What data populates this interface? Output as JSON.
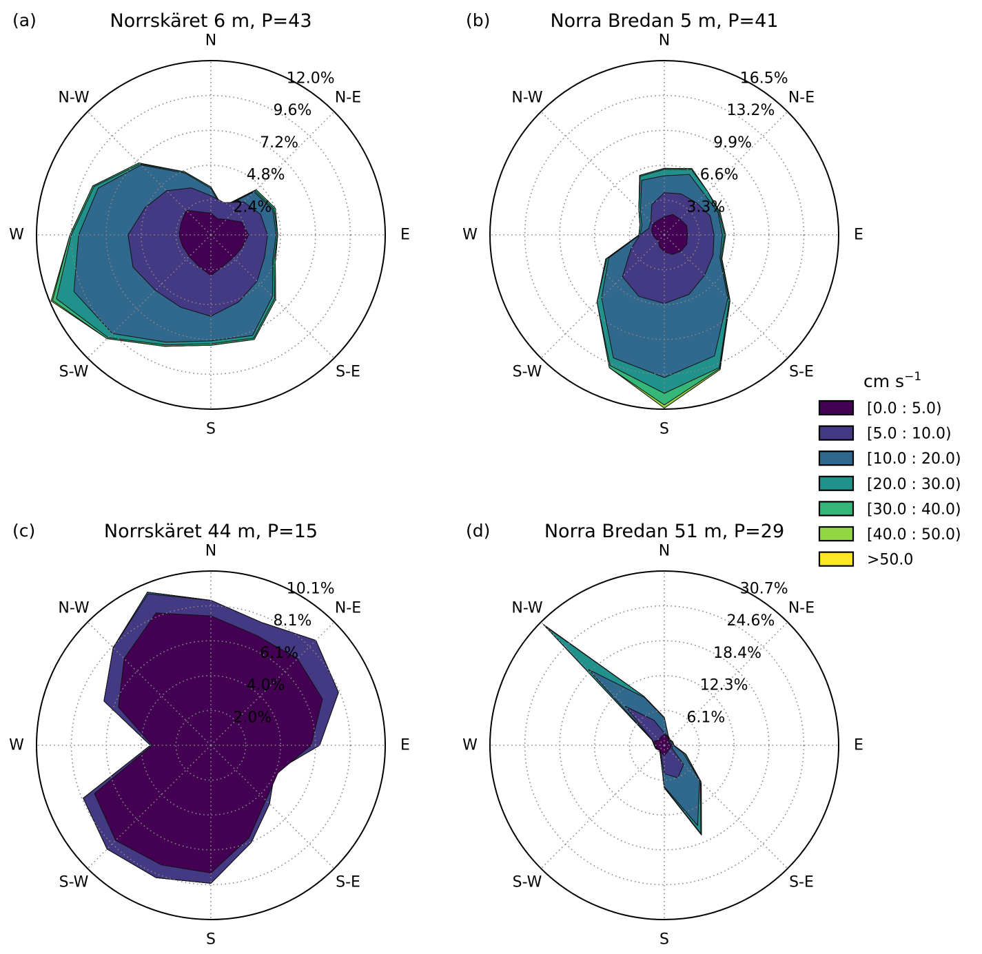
{
  "figure": {
    "legend": {
      "title": "cm s",
      "title_sup": "−1",
      "entries": [
        {
          "label": "[0.0 : 5.0)",
          "color": "#440154"
        },
        {
          "label": "[5.0 : 10.0)",
          "color": "#443983"
        },
        {
          "label": "[10.0 : 20.0)",
          "color": "#31688e"
        },
        {
          "label": "[20.0 : 30.0)",
          "color": "#21918c"
        },
        {
          "label": "[30.0 : 40.0)",
          "color": "#35b779"
        },
        {
          "label": "[40.0 : 50.0)",
          "color": "#90d743"
        },
        {
          "label": ">50.0",
          "color": "#fde725"
        }
      ]
    },
    "style": {
      "grid_color": "#888888",
      "edge_color": "#111111"
    }
  },
  "chart_data": [
    {
      "type": "radar",
      "panel_letter": "(a)",
      "title": "Norrskäret 6 m, P=43",
      "directions": [
        "N",
        "N-E",
        "E",
        "S-E",
        "S",
        "S-W",
        "W",
        "N-W"
      ],
      "ring_labels": [
        "2.4%",
        "4.8%",
        "7.2%",
        "9.6%",
        "12.0%"
      ],
      "rmax": 12.0,
      "grid": true,
      "theta": [
        0,
        22.5,
        45,
        67.5,
        90,
        112.5,
        135,
        157.5,
        180,
        202.5,
        225,
        247.5,
        270,
        292.5,
        315,
        337.5
      ],
      "series": [
        {
          "bin": "[0.0 : 5.0)",
          "values": [
            1.5,
            1.2,
            1.5,
            2.3,
            2.6,
            2.3,
            2.2,
            2.3,
            2.8,
            2.3,
            2.1,
            2.1,
            2.2,
            2.2,
            2.4,
            1.7
          ]
        },
        {
          "bin": "[5.0 : 10.0)",
          "values": [
            2.7,
            2.4,
            3.2,
            3.7,
            3.9,
            4.0,
            4.5,
            5.0,
            5.6,
            5.4,
            5.4,
            5.8,
            5.7,
            4.9,
            4.3,
            3.5
          ]
        },
        {
          "bin": "[10.0 : 20.0)",
          "values": [
            3.2,
            2.0,
            4.2,
            4.6,
            4.5,
            4.6,
            6.0,
            7.5,
            7.3,
            8.0,
            9.6,
            10.2,
            9.1,
            8.4,
            6.8,
            4.6
          ]
        },
        {
          "bin": "[20.0 : 30.0)",
          "values": [
            3.3,
            2.1,
            4.3,
            4.7,
            4.6,
            4.7,
            6.2,
            7.7,
            7.5,
            8.2,
            10.0,
            11.5,
            9.6,
            8.7,
            6.9,
            4.7
          ]
        },
        {
          "bin": "[30.0 : 40.0)",
          "values": [
            3.3,
            2.1,
            4.4,
            4.8,
            4.6,
            4.8,
            6.3,
            7.8,
            7.6,
            8.3,
            10.1,
            11.8,
            9.7,
            8.8,
            7.0,
            4.7
          ]
        },
        {
          "bin": "[40.0 : 50.0)",
          "values": [
            3.3,
            2.1,
            4.4,
            4.8,
            4.6,
            4.8,
            6.3,
            7.8,
            7.6,
            8.3,
            10.1,
            11.9,
            9.7,
            8.8,
            7.0,
            4.7
          ]
        },
        {
          "bin": ">50.0",
          "values": [
            3.3,
            2.1,
            4.4,
            4.8,
            4.6,
            4.8,
            6.3,
            7.8,
            7.6,
            8.3,
            10.1,
            11.9,
            9.7,
            8.8,
            7.0,
            4.7
          ]
        }
      ]
    },
    {
      "type": "radar",
      "panel_letter": "(b)",
      "title": "Norra Bredan 5 m, P=41",
      "directions": [
        "N",
        "N-E",
        "E",
        "S-E",
        "S",
        "S-W",
        "W",
        "N-W"
      ],
      "ring_labels": [
        "3.3%",
        "6.6%",
        "9.9%",
        "13.2%",
        "16.5%"
      ],
      "rmax": 16.5,
      "grid": true,
      "theta": [
        0,
        22.5,
        45,
        67.5,
        90,
        112.5,
        135,
        157.5,
        180,
        202.5,
        225,
        247.5,
        270,
        292.5,
        315,
        337.5
      ],
      "series": [
        {
          "bin": "[0.0 : 5.0)",
          "values": [
            1.7,
            2.1,
            2.1,
            2.3,
            2.2,
            2.3,
            2.2,
            2.0,
            1.6,
            1.2,
            0.8,
            0.9,
            1.1,
            1.3,
            1.5,
            1.5
          ]
        },
        {
          "bin": "[5.0 : 10.0)",
          "values": [
            4.0,
            4.2,
            4.3,
            4.7,
            4.7,
            5.0,
            5.4,
            6.1,
            6.5,
            6.3,
            5.6,
            3.4,
            2.3,
            1.6,
            1.8,
            3.1
          ]
        },
        {
          "bin": "[10.0 : 20.0)",
          "values": [
            5.6,
            6.2,
            5.4,
            5.5,
            5.5,
            5.7,
            8.5,
            12.4,
            13.5,
            12.6,
            8.4,
            5.7,
            2.3,
            2.3,
            3.2,
            5.6
          ]
        },
        {
          "bin": "[20.0 : 30.0)",
          "values": [
            6.2,
            6.7,
            5.8,
            5.6,
            5.7,
            5.8,
            8.7,
            13.6,
            15.0,
            13.4,
            9.0,
            5.9,
            2.4,
            2.5,
            3.4,
            6.0
          ]
        },
        {
          "bin": "[30.0 : 40.0)",
          "values": [
            6.3,
            6.8,
            5.8,
            5.7,
            5.8,
            5.9,
            8.8,
            13.7,
            16.1,
            13.6,
            9.0,
            6.0,
            2.4,
            2.5,
            3.4,
            6.1
          ]
        },
        {
          "bin": "[40.0 : 50.0)",
          "values": [
            6.3,
            6.8,
            5.8,
            5.7,
            5.8,
            5.9,
            8.8,
            13.8,
            16.4,
            13.6,
            9.0,
            6.0,
            2.4,
            2.5,
            3.4,
            6.1
          ]
        },
        {
          "bin": ">50.0",
          "values": [
            6.3,
            6.8,
            5.8,
            5.7,
            5.8,
            5.9,
            8.8,
            13.8,
            16.4,
            13.6,
            9.0,
            6.0,
            2.4,
            2.5,
            3.4,
            6.1
          ]
        }
      ]
    },
    {
      "type": "radar",
      "panel_letter": "(c)",
      "title": "Norrskäret 44 m, P=15",
      "directions": [
        "N",
        "N-E",
        "E",
        "S-E",
        "S",
        "S-W",
        "W",
        "N-W"
      ],
      "ring_labels": [
        "2.0%",
        "4.0%",
        "6.1%",
        "8.1%",
        "10.1%"
      ],
      "rmax": 10.1,
      "grid": true,
      "theta": [
        0,
        22.5,
        45,
        67.5,
        90,
        112.5,
        135,
        157.5,
        180,
        202.5,
        225,
        247.5,
        270,
        292.5,
        315,
        337.5
      ],
      "series": [
        {
          "bin": "[0.0 : 5.0)",
          "values": [
            7.5,
            6.9,
            7.1,
            7.0,
            5.8,
            4.2,
            4.5,
            5.8,
            7.4,
            7.5,
            7.8,
            7.3,
            3.4,
            5.8,
            7.1,
            8.3
          ]
        },
        {
          "bin": "[5.0 : 10.0)",
          "values": [
            8.4,
            7.7,
            8.6,
            8.0,
            6.3,
            4.0,
            4.8,
            6.1,
            8.0,
            8.3,
            8.5,
            8.0,
            3.5,
            6.7,
            8.0,
            9.5
          ]
        },
        {
          "bin": "[10.0 : 20.0)",
          "values": [
            8.4,
            7.7,
            8.6,
            8.0,
            6.3,
            4.0,
            4.8,
            6.1,
            8.0,
            8.3,
            8.5,
            8.0,
            3.5,
            6.7,
            8.0,
            9.6
          ]
        },
        {
          "bin": "[20.0 : 30.0)",
          "values": [
            8.4,
            7.7,
            8.6,
            8.0,
            6.3,
            4.0,
            4.8,
            6.1,
            8.0,
            8.3,
            8.5,
            8.0,
            3.5,
            6.7,
            8.0,
            9.6
          ]
        },
        {
          "bin": "[30.0 : 40.0)",
          "values": [
            8.4,
            7.7,
            8.6,
            8.0,
            6.3,
            4.0,
            4.8,
            6.1,
            8.0,
            8.3,
            8.5,
            8.0,
            3.5,
            6.7,
            8.0,
            9.6
          ]
        },
        {
          "bin": "[40.0 : 50.0)",
          "values": [
            8.4,
            7.7,
            8.6,
            8.0,
            6.3,
            4.0,
            4.8,
            6.1,
            8.0,
            8.3,
            8.5,
            8.0,
            3.5,
            6.7,
            8.0,
            9.6
          ]
        },
        {
          "bin": ">50.0",
          "values": [
            8.4,
            7.7,
            8.6,
            8.0,
            6.3,
            4.0,
            4.8,
            6.1,
            8.0,
            8.3,
            8.5,
            8.0,
            3.5,
            6.7,
            8.0,
            9.6
          ]
        }
      ]
    },
    {
      "type": "radar",
      "panel_letter": "(d)",
      "title": "Norra Bredan 51 m, P=29",
      "directions": [
        "N",
        "N-E",
        "E",
        "S-E",
        "S",
        "S-W",
        "W",
        "N-W"
      ],
      "ring_labels": [
        "6.1%",
        "12.3%",
        "18.4%",
        "24.6%",
        "30.7%"
      ],
      "rmax": 30.7,
      "grid": true,
      "theta": [
        0,
        22.5,
        45,
        67.5,
        90,
        112.5,
        135,
        157.5,
        180,
        202.5,
        225,
        247.5,
        270,
        292.5,
        315,
        337.5
      ],
      "series": [
        {
          "bin": "[0.0 : 5.0)",
          "values": [
            1.9,
            1.6,
            1.1,
            1.0,
            1.2,
            1.2,
            1.1,
            1.3,
            1.8,
            1.4,
            1.2,
            1.4,
            1.6,
            1.9,
            1.3,
            1.6
          ]
        },
        {
          "bin": "[5.0 : 10.0)",
          "values": [
            2.2,
            1.7,
            1.3,
            1.2,
            1.4,
            1.5,
            4.8,
            6.2,
            5.0,
            1.6,
            1.2,
            1.5,
            1.7,
            2.2,
            9.7,
            4.8
          ]
        },
        {
          "bin": "[10.0 : 20.0)",
          "values": [
            4.8,
            1.8,
            1.3,
            1.5,
            1.6,
            3.6,
            8.8,
            15.3,
            7.3,
            1.8,
            1.2,
            1.6,
            1.8,
            2.2,
            18.9,
            9.1
          ]
        },
        {
          "bin": "[20.0 : 30.0)",
          "values": [
            4.9,
            1.8,
            1.4,
            1.6,
            1.7,
            4.0,
            9.0,
            16.8,
            7.4,
            1.8,
            1.2,
            1.6,
            1.8,
            2.3,
            29.6,
            9.3
          ]
        },
        {
          "bin": "[30.0 : 40.0)",
          "values": [
            4.9,
            1.8,
            1.4,
            1.6,
            1.7,
            4.1,
            9.1,
            17.0,
            7.5,
            1.8,
            1.2,
            1.6,
            1.8,
            2.3,
            30.0,
            9.3
          ]
        },
        {
          "bin": "[40.0 : 50.0)",
          "values": [
            4.9,
            1.8,
            1.4,
            1.6,
            1.7,
            4.1,
            9.2,
            17.1,
            7.5,
            1.8,
            1.2,
            1.6,
            1.8,
            2.3,
            30.1,
            9.3
          ]
        },
        {
          "bin": ">50.0",
          "values": [
            4.9,
            1.8,
            1.4,
            1.6,
            1.7,
            4.1,
            9.2,
            17.1,
            7.5,
            1.8,
            1.2,
            1.6,
            1.8,
            2.3,
            30.1,
            9.3
          ]
        }
      ]
    }
  ]
}
